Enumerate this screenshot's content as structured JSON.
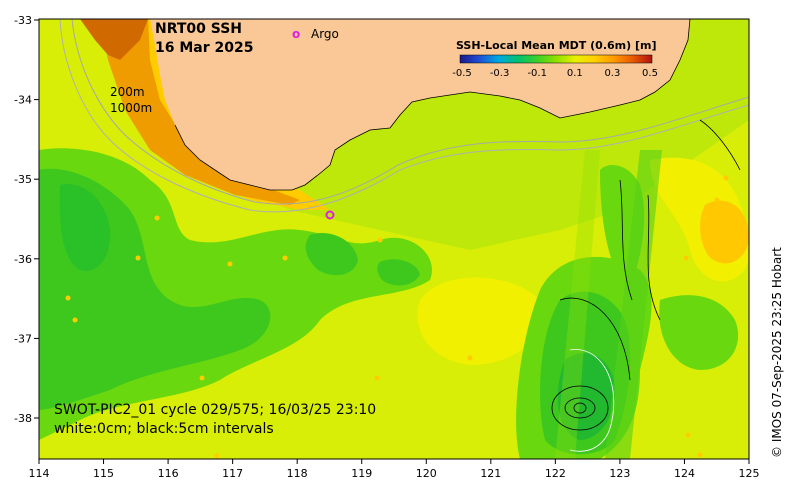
{
  "title": {
    "product": "NRT00 SSH",
    "date": "16 Mar 2025"
  },
  "legend": {
    "argo_marker": "o",
    "argo_label": "Argo",
    "argo_color": "#e020e0"
  },
  "colorbar": {
    "title": "SSH-Local Mean MDT (0.6m) [m]",
    "ticks": [
      "-0.5",
      "-0.3",
      "-0.1",
      "0.1",
      "0.3",
      "0.5"
    ],
    "colors": [
      "#1a1a8c",
      "#1f4fd6",
      "#00a8e0",
      "#00c070",
      "#3ad02a",
      "#8fe000",
      "#e8f000",
      "#ffd000",
      "#ff9a00",
      "#e85a00",
      "#b01010"
    ]
  },
  "depth_labels": {
    "contour_200": "200m",
    "contour_1000": "1000m"
  },
  "x_axis": {
    "ticks": [
      "114",
      "115",
      "116",
      "117",
      "118",
      "119",
      "120",
      "121",
      "122",
      "123",
      "124",
      "125"
    ]
  },
  "y_axis": {
    "ticks": [
      "-33",
      "-34",
      "-35",
      "-36",
      "-37",
      "-38"
    ]
  },
  "swot_info": {
    "line1": "SWOT-PIC2_01 cycle 029/575; 16/03/25 23:10",
    "line2": "white:0cm; black:5cm intervals"
  },
  "credit": "© IMOS 07-Sep-2025 23:25 Hobart",
  "colors": {
    "land": "#fac896",
    "ocean_green": "#46cc1e",
    "ocean_lightgreen": "#8ae00a",
    "ocean_yellow": "#e8f000",
    "ocean_orange": "#ffbe00",
    "shelf_orange": "#e88c00",
    "shelf_deep": "#c85a00"
  }
}
